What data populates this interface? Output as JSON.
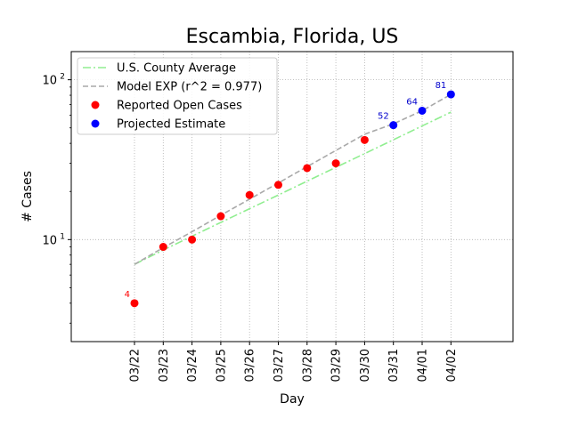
{
  "chart_data": {
    "type": "scatter",
    "title": "Escambia, Florida, US",
    "xlabel": "Day",
    "ylabel": "# Cases",
    "yscale": "log",
    "ylim": [
      2.3,
      150
    ],
    "grid": true,
    "legend_position": "top-left",
    "categories": [
      "03/22",
      "03/23",
      "03/24",
      "03/25",
      "03/26",
      "03/27",
      "03/28",
      "03/29",
      "03/30",
      "03/31",
      "04/01",
      "04/02"
    ],
    "y_ticks": [
      {
        "value": 10,
        "base": "10",
        "exp": "1"
      },
      {
        "value": 100,
        "base": "10",
        "exp": "2"
      }
    ],
    "series": [
      {
        "name": "U.S. County Average",
        "kind": "line",
        "style": "dashdot",
        "color": "#90ee90",
        "x": [
          "03/22",
          "03/23",
          "03/24",
          "03/25",
          "03/26",
          "03/27",
          "03/28",
          "03/29",
          "03/30",
          "03/31",
          "04/01",
          "04/02"
        ],
        "values": [
          7.0,
          8.6,
          10.5,
          12.8,
          15.6,
          19.0,
          23.2,
          28.3,
          34.5,
          42.1,
          51.4,
          62.7
        ]
      },
      {
        "name": "Model EXP (r^2 = 0.977)",
        "kind": "line",
        "style": "dashed",
        "color": "#a9a9a9",
        "x": [
          "03/22",
          "03/23",
          "03/24",
          "03/25",
          "03/26",
          "03/27",
          "03/28",
          "03/29",
          "03/30",
          "03/31",
          "04/01",
          "04/02"
        ],
        "values": [
          7.0,
          8.9,
          11.2,
          14.2,
          17.9,
          22.6,
          28.6,
          36.1,
          45.6,
          53.0,
          64.0,
          81.0
        ]
      },
      {
        "name": "Reported Open Cases",
        "kind": "marker",
        "color": "#ff0000",
        "x": [
          "03/22",
          "03/23",
          "03/24",
          "03/25",
          "03/26",
          "03/27",
          "03/28",
          "03/29",
          "03/30"
        ],
        "values": [
          4,
          9,
          10,
          14,
          19,
          22,
          28,
          30,
          42
        ]
      },
      {
        "name": "Projected Estimate",
        "kind": "marker",
        "color": "#0000ff",
        "x": [
          "03/31",
          "04/01",
          "04/02"
        ],
        "values": [
          52,
          64,
          81
        ]
      }
    ],
    "annotations": [
      {
        "x": "03/22",
        "y": 4,
        "text": "4",
        "color": "#ff0000"
      },
      {
        "x": "03/31",
        "y": 52,
        "text": "52",
        "color": "#0000cc"
      },
      {
        "x": "04/01",
        "y": 64,
        "text": "64",
        "color": "#0000cc"
      },
      {
        "x": "04/02",
        "y": 81,
        "text": "81",
        "color": "#0000cc"
      }
    ]
  }
}
